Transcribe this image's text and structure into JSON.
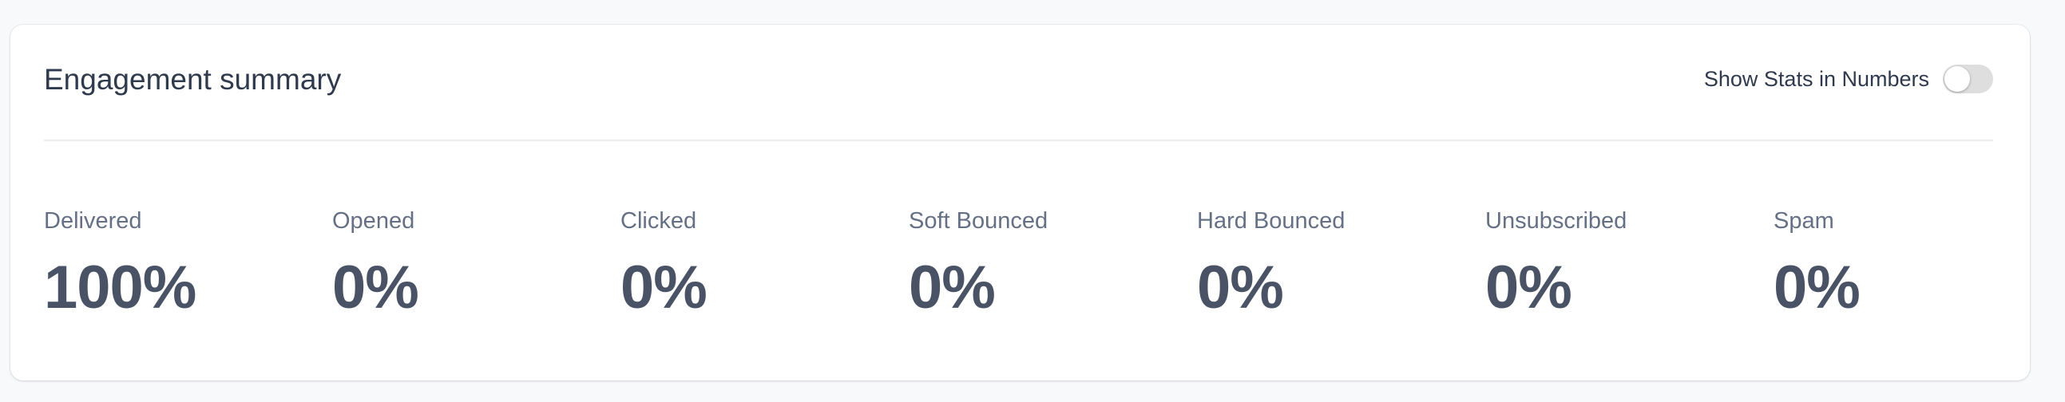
{
  "card": {
    "title": "Engagement summary",
    "toggle": {
      "label": "Show Stats in Numbers",
      "on": false
    }
  },
  "stats": [
    {
      "label": "Delivered",
      "value": "100%"
    },
    {
      "label": "Opened",
      "value": "0%"
    },
    {
      "label": "Clicked",
      "value": "0%"
    },
    {
      "label": "Soft Bounced",
      "value": "0%"
    },
    {
      "label": "Hard Bounced",
      "value": "0%"
    },
    {
      "label": "Unsubscribed",
      "value": "0%"
    },
    {
      "label": "Spam",
      "value": "0%"
    }
  ]
}
